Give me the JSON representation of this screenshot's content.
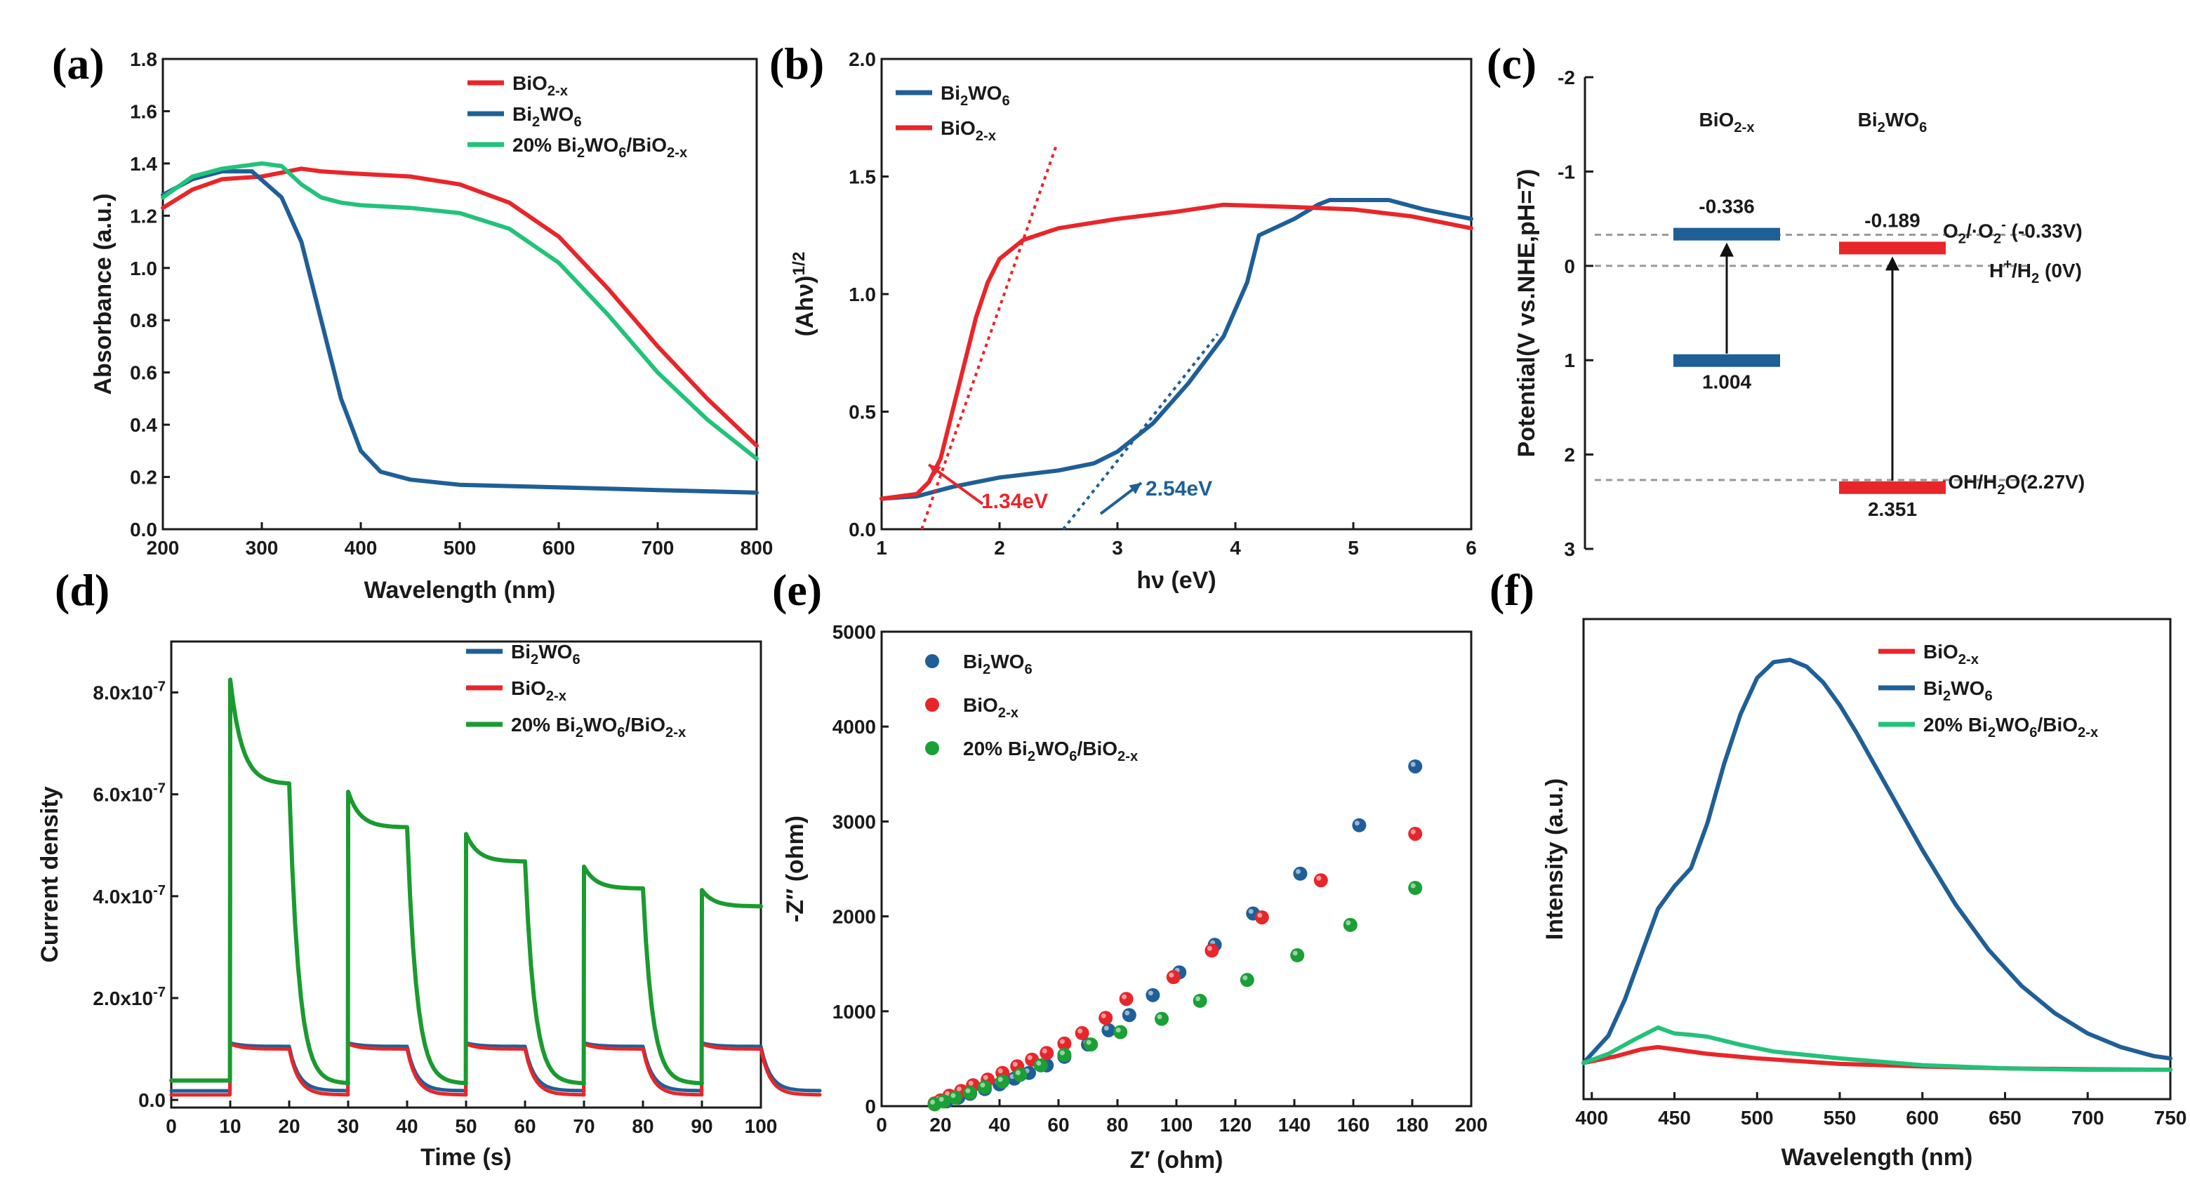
{
  "chart_data": [
    {
      "id": "a",
      "type": "line",
      "panel_label": "(a)",
      "xlabel": "Wavelength (nm)",
      "ylabel": "Absorbance (a.u.)",
      "xlim": [
        200,
        800
      ],
      "ylim": [
        0.0,
        1.8
      ],
      "xticks": [
        "200",
        "300",
        "400",
        "500",
        "600",
        "700",
        "800"
      ],
      "yticks": [
        "0.0",
        "0.2",
        "0.4",
        "0.6",
        "0.8",
        "1.0",
        "1.2",
        "1.4",
        "1.6",
        "1.8"
      ],
      "legend": [
        "BiO2-x",
        "Bi2WO6",
        "20% Bi2WO6/BiO2-x"
      ],
      "series": [
        {
          "name": "BiO2-x",
          "color": "#e8262a",
          "x": [
            200,
            230,
            260,
            300,
            340,
            360,
            400,
            450,
            500,
            550,
            600,
            650,
            700,
            750,
            800
          ],
          "y": [
            1.23,
            1.3,
            1.34,
            1.35,
            1.38,
            1.37,
            1.36,
            1.35,
            1.32,
            1.25,
            1.12,
            0.92,
            0.7,
            0.5,
            0.32
          ]
        },
        {
          "name": "Bi2WO6",
          "color": "#1f5f97",
          "x": [
            200,
            230,
            260,
            290,
            320,
            340,
            360,
            380,
            400,
            420,
            450,
            500,
            600,
            700,
            800
          ],
          "y": [
            1.28,
            1.34,
            1.37,
            1.37,
            1.27,
            1.1,
            0.8,
            0.5,
            0.3,
            0.22,
            0.19,
            0.17,
            0.16,
            0.15,
            0.14
          ]
        },
        {
          "name": "20% Bi2WO6/BiO2-x",
          "color": "#22c27a",
          "x": [
            200,
            230,
            260,
            300,
            320,
            340,
            360,
            380,
            400,
            450,
            500,
            550,
            600,
            650,
            700,
            750,
            800
          ],
          "y": [
            1.27,
            1.35,
            1.38,
            1.4,
            1.39,
            1.32,
            1.27,
            1.25,
            1.24,
            1.23,
            1.21,
            1.15,
            1.02,
            0.82,
            0.6,
            0.42,
            0.27
          ]
        }
      ]
    },
    {
      "id": "b",
      "type": "line",
      "panel_label": "(b)",
      "xlabel": "hν (eV)",
      "ylabel": "(Ahν)1/2",
      "xlim": [
        1,
        6
      ],
      "ylim": [
        0.0,
        2.0
      ],
      "xticks": [
        "1",
        "2",
        "3",
        "4",
        "5",
        "6"
      ],
      "yticks": [
        "0.0",
        "0.5",
        "1.0",
        "1.5",
        "2.0"
      ],
      "legend": [
        "Bi2WO6",
        "BiO2-x"
      ],
      "series": [
        {
          "name": "Bi2WO6",
          "color": "#1f5f97",
          "x": [
            1.0,
            1.3,
            1.6,
            2.0,
            2.5,
            2.8,
            3.0,
            3.3,
            3.6,
            3.9,
            4.1,
            4.2,
            4.5,
            4.7,
            4.8,
            5.0,
            5.3,
            5.6,
            6.0
          ],
          "y": [
            0.13,
            0.14,
            0.18,
            0.22,
            0.25,
            0.28,
            0.33,
            0.45,
            0.62,
            0.82,
            1.05,
            1.25,
            1.32,
            1.38,
            1.4,
            1.4,
            1.4,
            1.36,
            1.32
          ]
        },
        {
          "name": "BiO2-x",
          "color": "#e8262a",
          "x": [
            1.0,
            1.3,
            1.4,
            1.5,
            1.6,
            1.7,
            1.8,
            1.9,
            2.0,
            2.2,
            2.5,
            3.0,
            3.5,
            3.9,
            4.5,
            5.0,
            5.5,
            6.0
          ],
          "y": [
            0.13,
            0.15,
            0.2,
            0.3,
            0.5,
            0.7,
            0.9,
            1.05,
            1.15,
            1.23,
            1.28,
            1.32,
            1.35,
            1.38,
            1.37,
            1.36,
            1.33,
            1.28
          ]
        }
      ],
      "tangents": [
        {
          "color": "#e8262a",
          "x": [
            1.34,
            2.48
          ],
          "y": [
            0.0,
            1.63
          ]
        },
        {
          "color": "#1f5f97",
          "x": [
            2.54,
            3.85
          ],
          "y": [
            0.0,
            0.83
          ]
        }
      ],
      "annotations": [
        {
          "text": "1.34eV",
          "color": "#e8262a"
        },
        {
          "text": "2.54eV",
          "color": "#1f5f97"
        }
      ]
    },
    {
      "id": "c",
      "type": "band-diagram",
      "panel_label": "(c)",
      "ylabel": "Potential(V vs.NHE,pH=7)",
      "ylim": [
        -2,
        3
      ],
      "yticks": [
        "-2",
        "-1",
        "0",
        "1",
        "2",
        "3"
      ],
      "materials": [
        {
          "name": "BiO2-x",
          "cb": -0.336,
          "vb": 1.004,
          "cb_label": "-0.336",
          "vb_label": "1.004",
          "color": "#1f5f97"
        },
        {
          "name": "Bi2WO6",
          "cb": -0.189,
          "vb": 2.351,
          "cb_label": "-0.189",
          "vb_label": "2.351",
          "color": "#e8262a"
        }
      ],
      "reference_lines": [
        {
          "value": -0.33,
          "label": "O2/·O2- (-0.33V)"
        },
        {
          "value": 0.0,
          "label": "H+/H2 (0V)"
        },
        {
          "value": 2.27,
          "label": "·OH/H2O(2.27V)"
        }
      ]
    },
    {
      "id": "d",
      "type": "line",
      "panel_label": "(d)",
      "xlabel": "Time (s)",
      "ylabel": "Current density",
      "xlim": [
        0,
        100
      ],
      "ylim": [
        -1.5e-08,
        9e-07
      ],
      "xticks": [
        "0",
        "10",
        "20",
        "30",
        "40",
        "50",
        "60",
        "70",
        "80",
        "90",
        "100"
      ],
      "yticks": [
        "0.0",
        "2.0x10-7",
        "4.0x10-7",
        "6.0x10-7",
        "8.0x10-7"
      ],
      "legend": [
        "Bi2WO6",
        "BiO2-x",
        "20% Bi2WO6/BiO2-x"
      ],
      "light_on": [
        10,
        30,
        50,
        70,
        90
      ],
      "light_off": [
        20,
        40,
        60,
        80
      ],
      "series": [
        {
          "name": "Bi2WO6",
          "color": "#1f5f97",
          "dark": 1.8e-08,
          "on_start": 1.12e-07,
          "on_end": 1.05e-07
        },
        {
          "name": "BiO2-x",
          "color": "#e8262a",
          "dark": 1e-08,
          "on_start": 1.1e-07,
          "on_end": 1e-07
        },
        {
          "name": "20% Bi2WO6/BiO2-x",
          "color": "#1a9b2f",
          "peaks": [
            8.25e-07,
            6.05e-07,
            5.22e-07,
            4.58e-07,
            4.12e-07
          ],
          "ends": [
            6.2e-07,
            5.35e-07,
            4.68e-07,
            4.15e-07,
            3.8e-07
          ],
          "dark_start": 3.8e-08,
          "dark_end": 3.2e-08
        }
      ]
    },
    {
      "id": "e",
      "type": "scatter",
      "panel_label": "(e)",
      "xlabel": "Z′  (ohm)",
      "ylabel": "-Z″ (ohm)",
      "xlim": [
        0,
        200
      ],
      "ylim": [
        0,
        5000
      ],
      "xticks": [
        "0",
        "20",
        "40",
        "60",
        "80",
        "100",
        "120",
        "140",
        "160",
        "180",
        "200"
      ],
      "yticks": [
        "0",
        "1000",
        "2000",
        "3000",
        "4000",
        "5000"
      ],
      "legend": [
        "Bi2WO6",
        "BiO2-x",
        "20% Bi2WO6/BiO2-x"
      ],
      "series": [
        {
          "name": "Bi2WO6",
          "color": "#1f5f97",
          "x": [
            18,
            22,
            26,
            30,
            35,
            40,
            45,
            50,
            56,
            62,
            70,
            77,
            84,
            92,
            101,
            113,
            126,
            142,
            162,
            181
          ],
          "y": [
            20,
            50,
            90,
            130,
            180,
            230,
            290,
            350,
            430,
            520,
            650,
            800,
            960,
            1170,
            1410,
            1700,
            2030,
            2450,
            2960,
            3580
          ]
        },
        {
          "name": "BiO2-x",
          "color": "#e8262a",
          "x": [
            18,
            20,
            23,
            27,
            31,
            36,
            41,
            46,
            51,
            56,
            62,
            68,
            76,
            83,
            99,
            112,
            129,
            149,
            181
          ],
          "y": [
            30,
            60,
            110,
            160,
            220,
            280,
            350,
            420,
            490,
            560,
            660,
            770,
            930,
            1130,
            1360,
            1640,
            1990,
            2380,
            2870
          ]
        },
        {
          "name": "20% Bi2WO6/BiO2-x",
          "color": "#1aa035",
          "x": [
            18,
            21,
            25,
            30,
            35,
            41,
            47,
            54,
            62,
            71,
            81,
            95,
            108,
            124,
            141,
            159,
            181
          ],
          "y": [
            20,
            50,
            90,
            140,
            200,
            260,
            330,
            430,
            540,
            650,
            780,
            920,
            1110,
            1330,
            1590,
            1910,
            2300
          ]
        }
      ]
    },
    {
      "id": "f",
      "type": "line",
      "panel_label": "(f)",
      "xlabel": "Wavelength (nm)",
      "ylabel": "Intensity (a.u.)",
      "xlim": [
        395,
        750
      ],
      "ylim": [
        0,
        1.0
      ],
      "xticks": [
        "400",
        "450",
        "500",
        "550",
        "600",
        "650",
        "700",
        "750"
      ],
      "legend": [
        "BiO2-x",
        "Bi2WO6",
        "20% Bi2WO6/BiO2-x"
      ],
      "series": [
        {
          "name": "BiO2-x",
          "color": "#e8262a",
          "x": [
            395,
            415,
            430,
            440,
            450,
            470,
            500,
            550,
            600,
            650,
            700,
            750
          ],
          "y": [
            0.02,
            0.035,
            0.05,
            0.055,
            0.05,
            0.04,
            0.03,
            0.018,
            0.012,
            0.008,
            0.006,
            0.005
          ]
        },
        {
          "name": "Bi2WO6",
          "color": "#1f5f97",
          "x": [
            395,
            410,
            420,
            430,
            440,
            450,
            460,
            470,
            480,
            490,
            500,
            510,
            520,
            530,
            540,
            550,
            560,
            580,
            600,
            620,
            640,
            660,
            680,
            700,
            720,
            740,
            750
          ],
          "y": [
            0.02,
            0.08,
            0.16,
            0.26,
            0.36,
            0.41,
            0.45,
            0.55,
            0.68,
            0.79,
            0.87,
            0.905,
            0.91,
            0.895,
            0.86,
            0.81,
            0.75,
            0.62,
            0.49,
            0.37,
            0.27,
            0.19,
            0.13,
            0.085,
            0.055,
            0.035,
            0.03
          ]
        },
        {
          "name": "20% Bi2WO6/BiO2-x",
          "color": "#22c27a",
          "x": [
            395,
            410,
            425,
            440,
            450,
            460,
            470,
            490,
            510,
            550,
            600,
            650,
            700,
            750
          ],
          "y": [
            0.02,
            0.04,
            0.07,
            0.098,
            0.085,
            0.082,
            0.078,
            0.06,
            0.045,
            0.03,
            0.015,
            0.008,
            0.005,
            0.005
          ]
        }
      ]
    }
  ]
}
